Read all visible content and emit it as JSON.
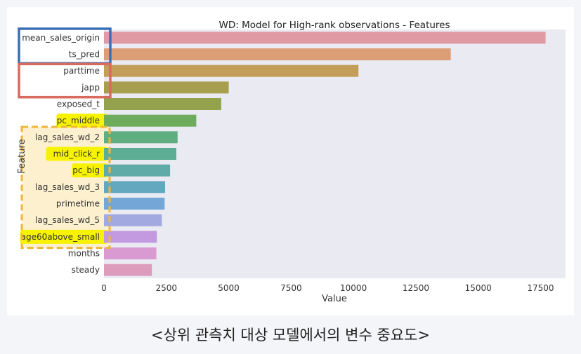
{
  "chart_data": {
    "type": "bar",
    "orientation": "horizontal",
    "title": "WD: Model for High-rank observations -  Features",
    "xlabel": "Value",
    "ylabel": "Feature",
    "xlim": [
      0,
      18500
    ],
    "xticks": [
      0,
      2500,
      5000,
      7500,
      10000,
      12500,
      15000,
      17500
    ],
    "grid": false,
    "categories": [
      "mean_sales_origin",
      "ts_pred",
      "parttime",
      "japp",
      "exposed_t",
      "pc_middle",
      "lag_sales_wd_2",
      "mid_click_r",
      "pc_big",
      "lag_sales_wd_3",
      "primetime",
      "lag_sales_wd_5",
      "age60above_small",
      "months",
      "steady"
    ],
    "values": [
      17700,
      13900,
      10200,
      5000,
      4700,
      3700,
      2950,
      2900,
      2650,
      2450,
      2430,
      2320,
      2120,
      2100,
      1920
    ],
    "bar_colors": [
      "#e09aa3",
      "#dd9d77",
      "#c29e59",
      "#a89f4e",
      "#94a24d",
      "#6dac5c",
      "#5fae82",
      "#5dad95",
      "#60aba8",
      "#63a8bf",
      "#74a7d8",
      "#a1a9e0",
      "#c39ae0",
      "#d99ad2",
      "#de9cbc"
    ],
    "annotations": {
      "blue_box": [
        "mean_sales_origin",
        "ts_pred"
      ],
      "red_box": [
        "parttime",
        "japp"
      ],
      "yellow_highlight": [
        "pc_middle",
        "mid_click_r",
        "pc_big",
        "age60above_small"
      ],
      "orange_dashed_box": [
        "lag_sales_wd_2",
        "mid_click_r",
        "pc_big",
        "lag_sales_wd_3",
        "primetime",
        "lag_sales_wd_5",
        "age60above_small"
      ]
    },
    "annotation_colors": {
      "blue": "#3a6fb5",
      "red": "#d96a5e",
      "yellow": "#f7f300",
      "orange": "#f0b63c",
      "orange_fill": "#fdf0cf"
    }
  },
  "caption": "<상위 관측치 대상 모델에서의 변수 중요도>"
}
